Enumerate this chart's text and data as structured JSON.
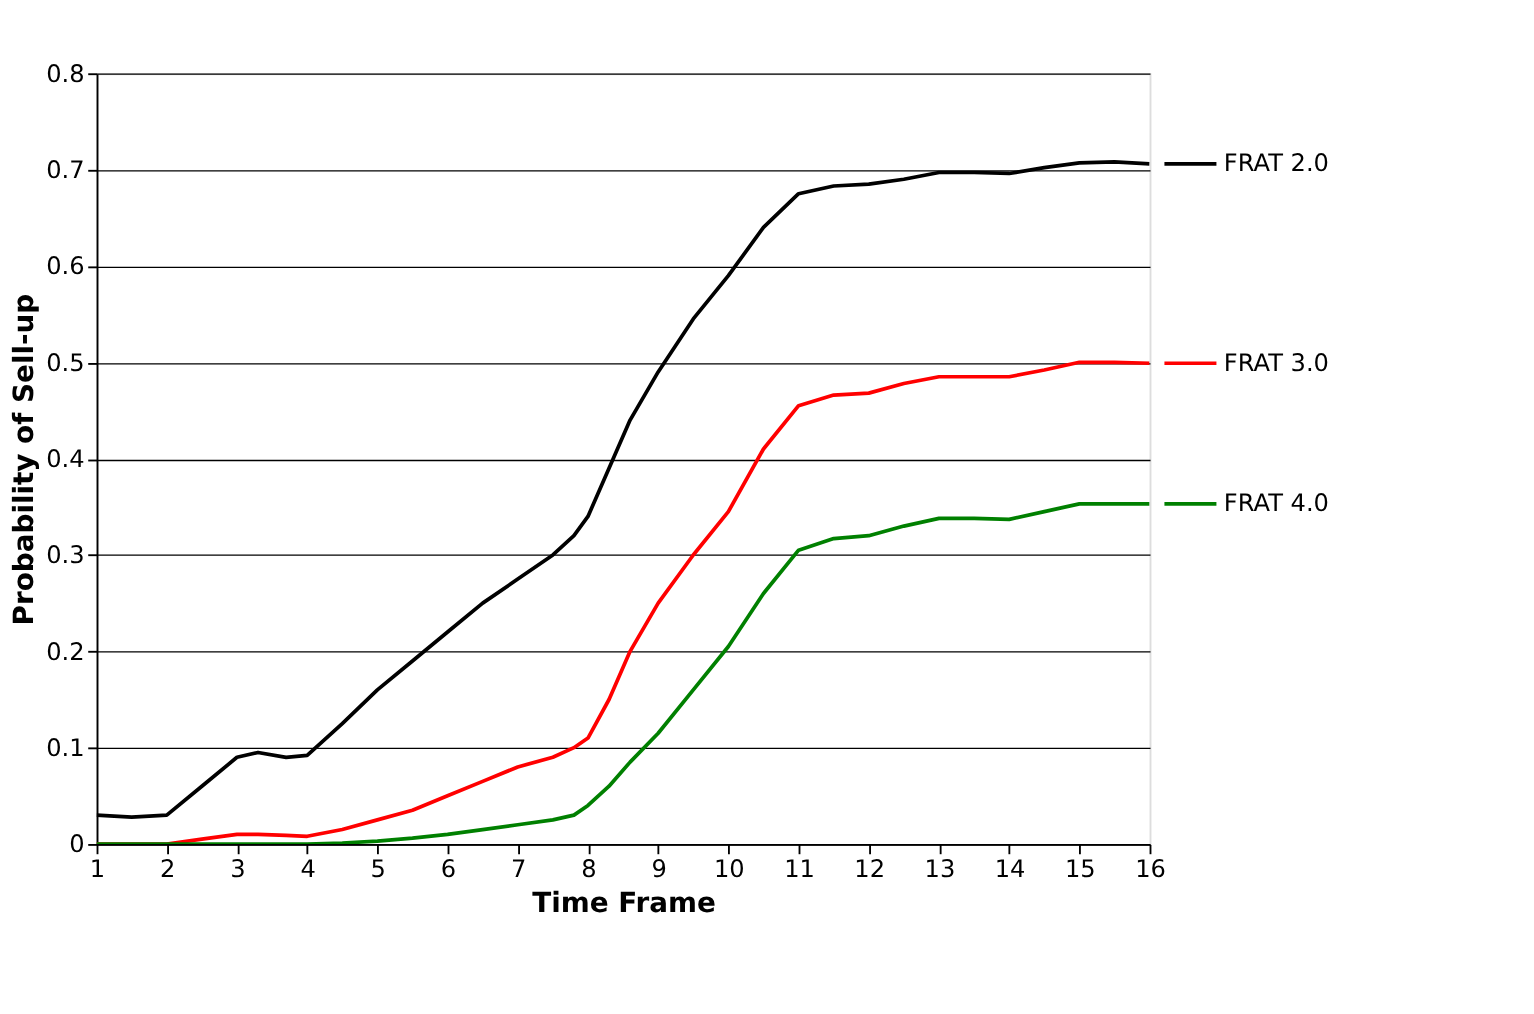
{
  "chart_data": {
    "type": "line",
    "xlabel": "Time Frame",
    "ylabel": "Probability of Sell-up",
    "xlim": [
      1,
      16
    ],
    "xticks": [
      1,
      2,
      3,
      4,
      5,
      6,
      7,
      8,
      9,
      10,
      11,
      12,
      13,
      14,
      15,
      16
    ],
    "ylim": [
      0,
      0.8
    ],
    "yticks": [
      {
        "value": 0,
        "label": "0"
      },
      0.1,
      0.2,
      0.3,
      0.4,
      0.5,
      0.6,
      0.7,
      0.8
    ],
    "grid": "y",
    "legend": "right",
    "marker": "none",
    "line_style": "solid",
    "x": [
      1,
      1.5,
      2,
      2.5,
      3,
      3.3,
      3.7,
      4,
      4.5,
      5,
      5.5,
      6,
      6.5,
      7,
      7.5,
      7.8,
      8,
      8.3,
      8.6,
      9,
      9.5,
      10,
      10.5,
      11,
      11.5,
      12,
      12.5,
      13,
      13.5,
      14,
      14.5,
      15,
      15.5,
      16
    ],
    "series": [
      {
        "name": "FRAT 2.0",
        "color": "#000000",
        "values": [
          0.03,
          0.028,
          0.03,
          0.06,
          0.09,
          0.095,
          0.09,
          0.092,
          0.125,
          0.16,
          0.19,
          0.22,
          0.25,
          0.275,
          0.3,
          0.32,
          0.34,
          0.39,
          0.44,
          0.49,
          0.545,
          0.59,
          0.64,
          0.675,
          0.683,
          0.685,
          0.69,
          0.697,
          0.697,
          0.696,
          0.702,
          0.707,
          0.708,
          0.706
        ]
      },
      {
        "name": "FRAT 3.0",
        "color": "#ff0000",
        "values": [
          0,
          0,
          0,
          0.005,
          0.01,
          0.01,
          0.009,
          0.008,
          0.015,
          0.025,
          0.035,
          0.05,
          0.065,
          0.08,
          0.09,
          0.1,
          0.11,
          0.15,
          0.2,
          0.25,
          0.3,
          0.345,
          0.41,
          0.455,
          0.466,
          0.468,
          0.478,
          0.485,
          0.485,
          0.485,
          0.492,
          0.5,
          0.5,
          0.499
        ]
      },
      {
        "name": "FRAT 4.0",
        "color": "#008000",
        "values": [
          0,
          0,
          0,
          0,
          0,
          0,
          0,
          0,
          0.001,
          0.003,
          0.006,
          0.01,
          0.015,
          0.02,
          0.025,
          0.03,
          0.04,
          0.06,
          0.085,
          0.115,
          0.16,
          0.205,
          0.26,
          0.305,
          0.317,
          0.32,
          0.33,
          0.338,
          0.338,
          0.337,
          0.345,
          0.353,
          0.353,
          0.353
        ]
      }
    ]
  }
}
